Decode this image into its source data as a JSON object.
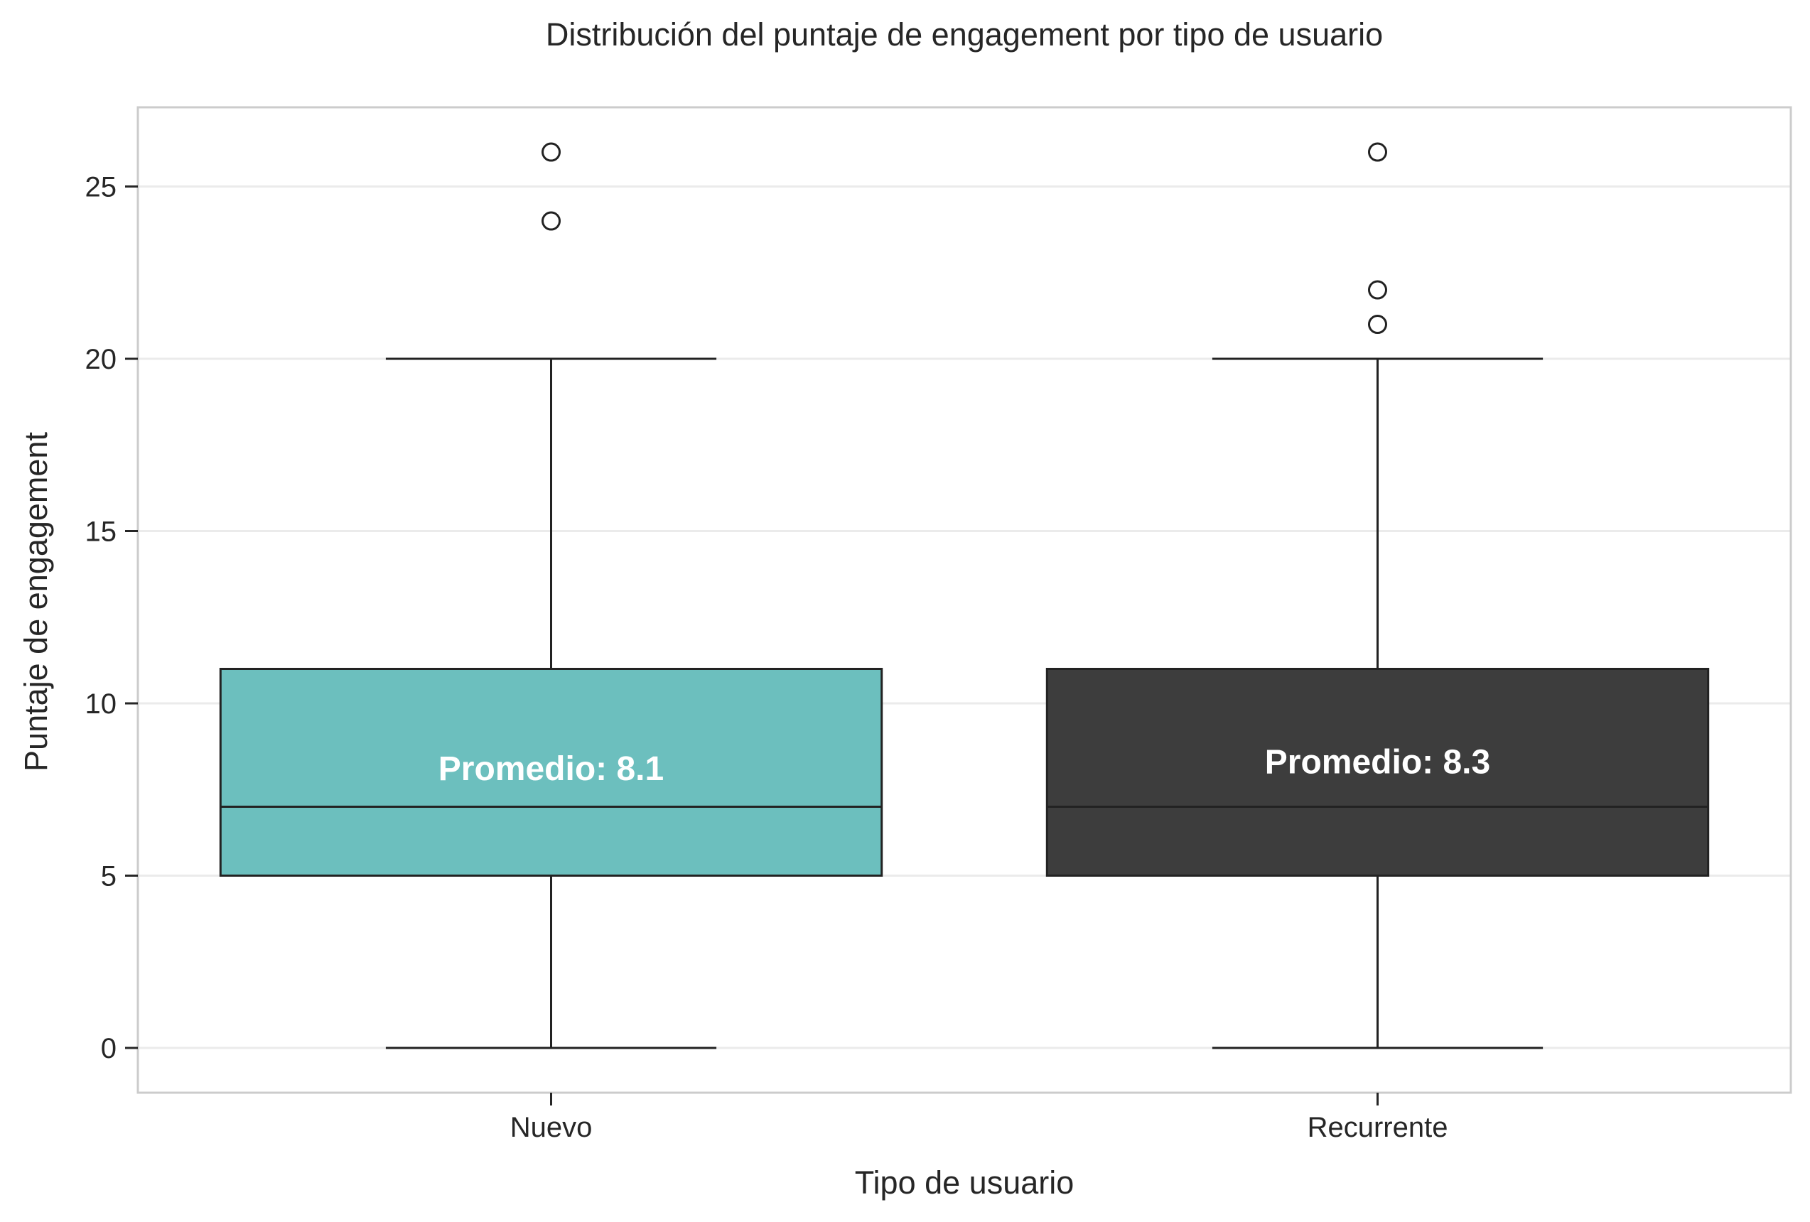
{
  "chart_data": {
    "type": "box",
    "title": "Distribución del puntaje de engagement por tipo de usuario",
    "xlabel": "Tipo de usuario",
    "ylabel": "Puntaje de engagement",
    "categories": [
      "Nuevo",
      "Recurrente"
    ],
    "ylim": [
      -1.3,
      27.3
    ],
    "yticks": [
      0,
      5,
      10,
      15,
      20,
      25
    ],
    "grid": true,
    "colors": {
      "Nuevo": "#6cbfbe",
      "Recurrente": "#3d3d3d",
      "lines": "#222222",
      "grid": "#ebebeb",
      "frame": "#cccccc"
    },
    "boxes": [
      {
        "category": "Nuevo",
        "whisker_low": 0,
        "q1": 5,
        "median": 7,
        "q3": 11,
        "whisker_high": 20,
        "outliers": [
          24,
          26
        ],
        "mean": 8.1,
        "mean_label": "Promedio: 8.1"
      },
      {
        "category": "Recurrente",
        "whisker_low": 0,
        "q1": 5,
        "median": 7,
        "q3": 11,
        "whisker_high": 20,
        "outliers": [
          21,
          22,
          26
        ],
        "mean": 8.3,
        "mean_label": "Promedio: 8.3"
      }
    ]
  }
}
